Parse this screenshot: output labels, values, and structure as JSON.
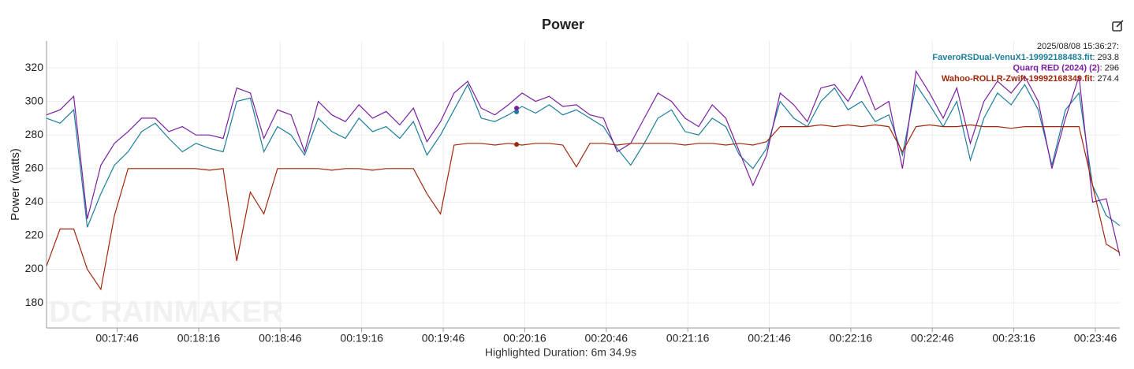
{
  "chart_data": {
    "type": "line",
    "title": "Power",
    "y_label": "Power (watts)",
    "x_label": "Highlighted Duration: 6m 34.9s",
    "watermark": "DC RAINMAKER",
    "x": [
      1040,
      1045,
      1050,
      1055,
      1060,
      1065,
      1070,
      1075,
      1080,
      1085,
      1090,
      1095,
      1100,
      1105,
      1110,
      1115,
      1120,
      1125,
      1130,
      1135,
      1140,
      1145,
      1150,
      1155,
      1160,
      1165,
      1170,
      1175,
      1180,
      1185,
      1190,
      1195,
      1200,
      1205,
      1210,
      1215,
      1220,
      1225,
      1230,
      1235,
      1240,
      1245,
      1250,
      1255,
      1260,
      1265,
      1270,
      1275,
      1280,
      1285,
      1290,
      1295,
      1300,
      1305,
      1310,
      1315,
      1320,
      1325,
      1330,
      1335,
      1340,
      1345,
      1350,
      1355,
      1360,
      1365,
      1370,
      1375,
      1380,
      1385,
      1390,
      1395,
      1400,
      1405,
      1410,
      1415,
      1420,
      1425,
      1430,
      1435
    ],
    "series": [
      {
        "name": "FaveroRSDual-VenuX1-19992188483.fit",
        "color": "#1b7d9c",
        "values": [
          290,
          287,
          295,
          225,
          245,
          262,
          270,
          282,
          287,
          278,
          270,
          275,
          272,
          270,
          300,
          302,
          270,
          285,
          280,
          268,
          290,
          282,
          278,
          290,
          282,
          285,
          278,
          288,
          268,
          280,
          295,
          310,
          290,
          288,
          292,
          297,
          293,
          298,
          292,
          295,
          290,
          285,
          272,
          262,
          275,
          290,
          295,
          282,
          280,
          290,
          285,
          268,
          260,
          272,
          300,
          290,
          285,
          300,
          308,
          295,
          300,
          288,
          292,
          268,
          310,
          298,
          285,
          300,
          265,
          290,
          305,
          298,
          310,
          295,
          262,
          295,
          305,
          250,
          232,
          226
        ]
      },
      {
        "name": "Quarq RED (2024) (2)",
        "color": "#7b1fa2",
        "values": [
          292,
          295,
          303,
          230,
          262,
          275,
          282,
          290,
          290,
          282,
          285,
          280,
          280,
          278,
          308,
          305,
          278,
          295,
          292,
          270,
          300,
          292,
          288,
          298,
          290,
          294,
          286,
          296,
          276,
          288,
          305,
          312,
          296,
          292,
          298,
          305,
          300,
          303,
          297,
          298,
          292,
          290,
          270,
          275,
          290,
          305,
          300,
          290,
          285,
          298,
          290,
          270,
          250,
          268,
          305,
          298,
          288,
          308,
          310,
          300,
          315,
          295,
          300,
          260,
          318,
          305,
          290,
          308,
          275,
          300,
          312,
          305,
          315,
          300,
          260,
          290,
          315,
          240,
          242,
          208
        ]
      },
      {
        "name": "Wahoo-ROLLR-Zwift-19992168349.fit",
        "color": "#a1280c",
        "values": [
          202,
          224,
          224,
          200,
          188,
          232,
          260,
          260,
          260,
          260,
          260,
          260,
          259,
          260,
          205,
          246,
          233,
          260,
          260,
          260,
          260,
          259,
          260,
          260,
          259,
          260,
          260,
          260,
          245,
          233,
          274,
          275,
          275,
          274,
          275,
          274,
          275,
          275,
          274,
          261,
          275,
          275,
          274,
          275,
          275,
          275,
          275,
          274,
          275,
          275,
          274,
          275,
          274,
          276,
          285,
          285,
          285,
          286,
          285,
          286,
          285,
          286,
          285,
          270,
          285,
          286,
          285,
          285,
          286,
          285,
          285,
          284,
          285,
          285,
          285,
          285,
          285,
          250,
          215,
          210
        ]
      }
    ],
    "xlim": [
      1040,
      1435
    ],
    "xticks": [
      {
        "value": 1066,
        "label": "00:17:46"
      },
      {
        "value": 1096,
        "label": "00:18:16"
      },
      {
        "value": 1126,
        "label": "00:18:46"
      },
      {
        "value": 1156,
        "label": "00:19:16"
      },
      {
        "value": 1186,
        "label": "00:19:46"
      },
      {
        "value": 1216,
        "label": "00:20:16"
      },
      {
        "value": 1246,
        "label": "00:20:46"
      },
      {
        "value": 1276,
        "label": "00:21:16"
      },
      {
        "value": 1306,
        "label": "00:21:46"
      },
      {
        "value": 1336,
        "label": "00:22:16"
      },
      {
        "value": 1366,
        "label": "00:22:46"
      },
      {
        "value": 1396,
        "label": "00:23:16"
      },
      {
        "value": 1426,
        "label": "00:23:46"
      }
    ],
    "ylim": [
      165,
      336
    ],
    "yticks": [
      180,
      200,
      220,
      240,
      260,
      280,
      300,
      320
    ],
    "grid": true,
    "tooltip": {
      "label": "2025/08/08 15:36:27:",
      "separator": ":",
      "x": 1213,
      "values": [
        293.8,
        296,
        274.4
      ]
    }
  }
}
